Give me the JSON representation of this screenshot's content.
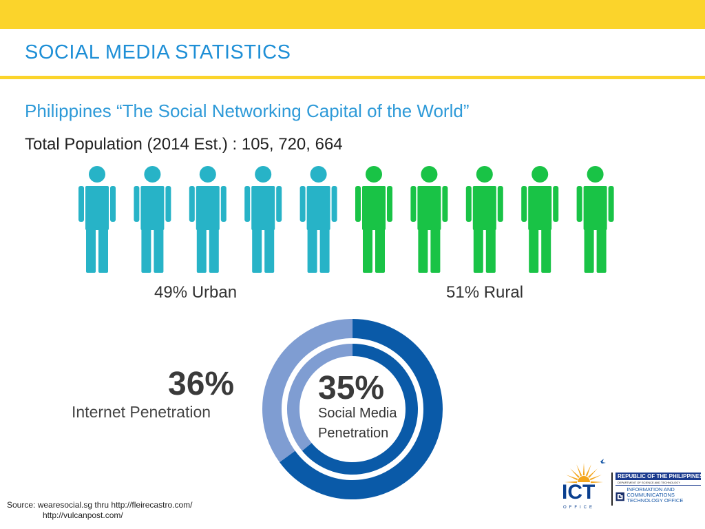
{
  "header": {
    "title": "SOCIAL MEDIA STATISTICS",
    "subtitle": "Philippines “The Social Networking Capital of the World”",
    "population": "Total Population (2014 Est.) : 105, 720, 664"
  },
  "population_split": {
    "urban_label": "49% Urban",
    "rural_label": "51% Rural",
    "urban_fraction": 0.49,
    "figure_count": 10,
    "urban_color": "#27b3c7",
    "rural_color": "#19c346"
  },
  "penetration": {
    "internet": {
      "value": "36%",
      "label": "Internet Penetration",
      "fraction": 0.36,
      "color": "#7f9dd2"
    },
    "social_media": {
      "value": "35%",
      "label": "Social Media Penetration",
      "fraction": 0.35,
      "color": "#0a5aa8"
    },
    "track_colors": {
      "outer": "#0a5aa8",
      "inner": "#7f9dd2"
    }
  },
  "source": {
    "line1": "Source: wearesocial.sg thru http://fleirecastro.com/",
    "line2": "http://vulcanpost.com/"
  },
  "logo": {
    "acronym": "ICT",
    "tagline": "OFFICE",
    "republic": "REPUBLIC OF THE PHILIPPINES",
    "department": "DEPARTMENT OF SCIENCE AND TECHNOLOGY",
    "office_name": "INFORMATION AND COMMUNICATIONS TECHNOLOGY OFFICE",
    "colors": {
      "sun": "#f4a61c",
      "ict": "#0a3f8e",
      "band": "#1a3a8e"
    }
  }
}
